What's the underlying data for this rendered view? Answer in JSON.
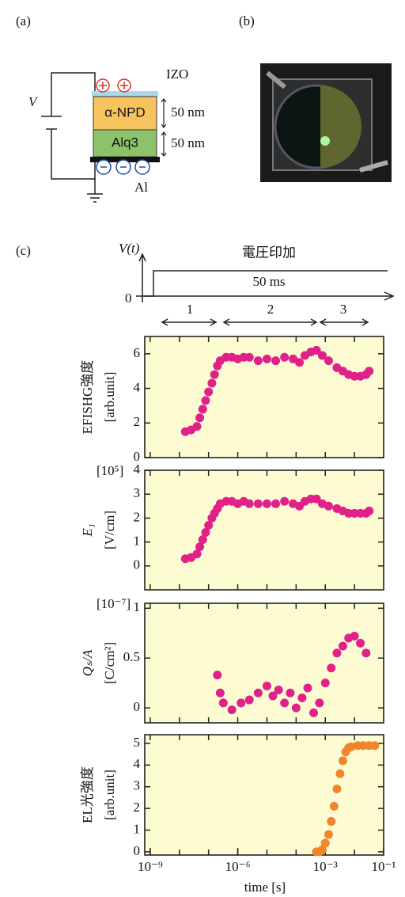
{
  "panel_a": {
    "label": "(a)",
    "voltage": "V",
    "top_electrode": "IZO",
    "layer1": "α-NPD",
    "layer1_thickness": "50 nm",
    "layer2": "Alq3",
    "layer2_thickness": "50 nm",
    "bottom_electrode": "Al"
  },
  "panel_b": {
    "label": "(b)"
  },
  "panel_c": {
    "label": "(c)",
    "axis_label": "V(t)",
    "pulse_label": "電圧印加",
    "duration": "50 ms",
    "zero": "0",
    "phases": [
      "1",
      "2",
      "3"
    ]
  },
  "chart_data": [
    {
      "type": "scatter",
      "ylabel": "EFISHG強度",
      "yunit": "[arb.unit]",
      "color": "#e0218a",
      "xscale": "log",
      "x": [
        1.6e-08,
        2.5e-08,
        4e-08,
        5e-08,
        6.3e-08,
        7.9e-08,
        1e-07,
        1.3e-07,
        1.6e-07,
        2e-07,
        2.5e-07,
        4e-07,
        6.3e-07,
        1e-06,
        1.6e-06,
        2.5e-06,
        5e-06,
        1e-05,
        2e-05,
        4e-05,
        7.9e-05,
        0.00013,
        0.0002,
        0.00032,
        0.0005,
        0.00079,
        0.0013,
        0.0025,
        0.004,
        0.0063,
        0.01,
        0.016,
        0.025,
        0.032
      ],
      "values": [
        1.5,
        1.6,
        1.8,
        2.3,
        2.8,
        3.3,
        3.8,
        4.3,
        4.8,
        5.3,
        5.6,
        5.8,
        5.8,
        5.7,
        5.8,
        5.8,
        5.6,
        5.7,
        5.6,
        5.8,
        5.7,
        5.5,
        5.9,
        6.1,
        6.2,
        5.9,
        5.6,
        5.2,
        5.0,
        4.8,
        4.7,
        4.7,
        4.8,
        5.0
      ],
      "xlim": [
        6.5e-10,
        0.1
      ],
      "ylim": [
        0,
        7
      ],
      "yticks": [
        0,
        2,
        4,
        6
      ],
      "xminorticks": [
        1e-09,
        1e-08,
        1e-07,
        1e-06,
        1e-05,
        0.0001,
        0.001,
        0.01
      ]
    },
    {
      "type": "scatter",
      "ylabel": "E₁",
      "yunit": "[V/cm]",
      "multiplier": "[10⁵]",
      "color": "#e0218a",
      "xscale": "log",
      "x": [
        1.6e-08,
        2.5e-08,
        4e-08,
        5e-08,
        6.3e-08,
        7.9e-08,
        1e-07,
        1.3e-07,
        1.6e-07,
        2e-07,
        2.5e-07,
        4e-07,
        6.3e-07,
        1e-06,
        1.6e-06,
        2.5e-06,
        5e-06,
        1e-05,
        2e-05,
        4e-05,
        7.9e-05,
        0.00013,
        0.0002,
        0.00032,
        0.0005,
        0.00079,
        0.0013,
        0.0025,
        0.004,
        0.0063,
        0.01,
        0.016,
        0.025,
        0.032
      ],
      "values": [
        0.3,
        0.35,
        0.5,
        0.8,
        1.1,
        1.4,
        1.7,
        2.0,
        2.2,
        2.4,
        2.6,
        2.7,
        2.7,
        2.6,
        2.7,
        2.6,
        2.6,
        2.6,
        2.6,
        2.7,
        2.6,
        2.5,
        2.7,
        2.8,
        2.8,
        2.6,
        2.5,
        2.4,
        2.3,
        2.2,
        2.2,
        2.2,
        2.2,
        2.3
      ],
      "xlim": [
        6.5e-10,
        0.1
      ],
      "ylim": [
        -1,
        4
      ],
      "yticks": [
        0,
        1,
        2,
        3,
        4
      ],
      "xminorticks": [
        1e-09,
        1e-08,
        1e-07,
        1e-06,
        1e-05,
        0.0001,
        0.001,
        0.01
      ]
    },
    {
      "type": "scatter",
      "ylabel": "Qₛ/A",
      "yunit": "[C/cm²]",
      "multiplier": "[10⁻⁷]",
      "color": "#e0218a",
      "xscale": "log",
      "x": [
        2e-07,
        2.5e-07,
        3.2e-07,
        6.3e-07,
        1.3e-06,
        2.5e-06,
        5e-06,
        1e-05,
        1.6e-05,
        2.5e-05,
        4e-05,
        6.3e-05,
        0.0001,
        0.00016,
        0.00025,
        0.0004,
        0.00063,
        0.001,
        0.0016,
        0.0025,
        0.004,
        0.0063,
        0.01,
        0.016,
        0.025
      ],
      "values": [
        0.33,
        0.15,
        0.05,
        -0.02,
        0.05,
        0.08,
        0.15,
        0.22,
        0.12,
        0.18,
        0.05,
        0.15,
        0.0,
        0.1,
        0.2,
        -0.05,
        0.05,
        0.25,
        0.4,
        0.55,
        0.62,
        0.7,
        0.72,
        0.65,
        0.55
      ],
      "xlim": [
        6.5e-10,
        0.1
      ],
      "ylim": [
        -0.15,
        1.05
      ],
      "yticks": [
        0,
        0.5,
        1
      ],
      "xminorticks": [
        1e-09,
        1e-08,
        1e-07,
        1e-06,
        1e-05,
        0.0001,
        0.001,
        0.01
      ]
    },
    {
      "type": "scatter",
      "ylabel": "EL光強度",
      "yunit": "[arb.unit]",
      "xlabel": "time [s]",
      "color": "#f0862c",
      "xscale": "log",
      "x": [
        0.0005,
        0.00063,
        0.00079,
        0.001,
        0.0013,
        0.0016,
        0.002,
        0.0025,
        0.0032,
        0.004,
        0.005,
        0.0063,
        0.0079,
        0.013,
        0.02,
        0.032,
        0.05
      ],
      "values": [
        0,
        0,
        0.1,
        0.4,
        0.8,
        1.4,
        2.1,
        2.9,
        3.6,
        4.2,
        4.6,
        4.8,
        4.85,
        4.9,
        4.9,
        4.9,
        4.9
      ],
      "xlim": [
        6.5e-10,
        0.1
      ],
      "ylim": [
        -0.15,
        5.4
      ],
      "yticks": [
        0,
        1,
        2,
        3,
        4,
        5
      ],
      "xticks": [
        {
          "value": 1e-09,
          "label": "10⁻⁹"
        },
        {
          "value": 1e-06,
          "label": "10⁻⁶"
        },
        {
          "value": 0.001,
          "label": "10⁻³"
        },
        {
          "value": 0.1,
          "label": "10⁻¹"
        }
      ],
      "xminorticks": [
        1e-09,
        1e-08,
        1e-07,
        1e-06,
        1e-05,
        0.0001,
        0.001,
        0.01
      ]
    }
  ]
}
